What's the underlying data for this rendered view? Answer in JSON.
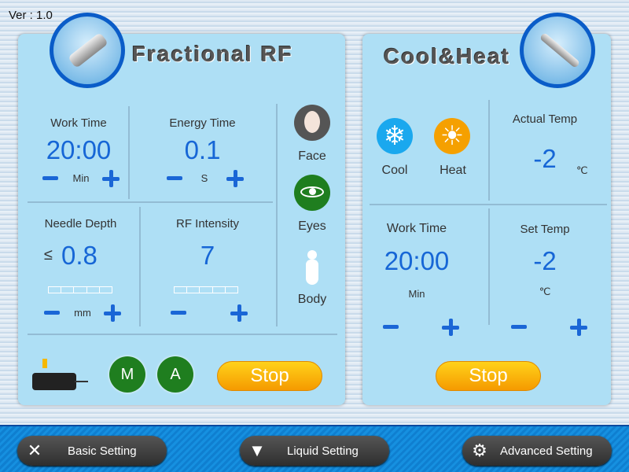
{
  "version": "Ver : 1.0",
  "left": {
    "title": "Fractional RF",
    "work_time": {
      "label": "Work Time",
      "value": "20:00",
      "unit": "Min"
    },
    "energy_time": {
      "label": "Energy Time",
      "value": "0.1",
      "unit": "S"
    },
    "needle_depth": {
      "label": "Needle Depth",
      "prefix": "≤",
      "value": "0.8",
      "unit": "mm",
      "level": 0
    },
    "rf_intensity": {
      "label": "RF Intensity",
      "value": "7",
      "level": 0
    },
    "modes": [
      {
        "label": "Face",
        "icon": "face-icon"
      },
      {
        "label": "Eyes",
        "icon": "eye-icon"
      },
      {
        "label": "Body",
        "icon": "body-icon"
      }
    ],
    "m_label": "M",
    "a_label": "A",
    "stop_label": "Stop"
  },
  "right": {
    "title": "Cool&Heat",
    "cool_label": "Cool",
    "heat_label": "Heat",
    "actual_temp": {
      "label": "Actual Temp",
      "value": "-2",
      "unit": "℃"
    },
    "work_time": {
      "label": "Work Time",
      "value": "20:00",
      "unit": "Min"
    },
    "set_temp": {
      "label": "Set Temp",
      "value": "-2",
      "unit": "℃"
    },
    "stop_label": "Stop"
  },
  "bottom": {
    "basic": "Basic Setting",
    "liquid": "Liquid Setting",
    "advanced": "Advanced Setting"
  },
  "colors": {
    "accent": "#1666d6",
    "panel": "#aedff5",
    "stop": "#f5a800",
    "mode_button": "#1f7e1f"
  }
}
